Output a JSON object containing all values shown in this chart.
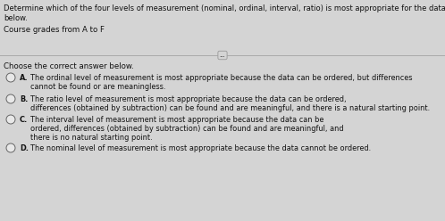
{
  "bg_color": "#d4d4d4",
  "title_line1": "Determine which of the four levels of measurement (nominal, ordinal, interval, ratio) is most appropriate for the data",
  "title_line2": "below.",
  "subtitle": "Course grades from A to F",
  "divider_label": "...",
  "prompt": "Choose the correct answer below.",
  "options": [
    {
      "letter": "A.",
      "lines": [
        "The ordinal level of measurement is most appropriate because the data can be ordered, but differences",
        "cannot be found or are meaningless."
      ]
    },
    {
      "letter": "B.",
      "lines": [
        "The ratio level of measurement is most appropriate because the data can be ordered,",
        "differences (obtained by subtraction) can be found and are meaningful, and there is a natural starting point."
      ]
    },
    {
      "letter": "C.",
      "lines": [
        "The interval level of measurement is most appropriate because the data can be",
        "ordered, differences (obtained by subtraction) can be found and are meaningful, and",
        "there is no natural starting point."
      ]
    },
    {
      "letter": "D.",
      "lines": [
        "The nominal level of measurement is most appropriate because the data cannot be ordered."
      ]
    }
  ],
  "font_size_title": 6.0,
  "font_size_subtitle": 6.2,
  "font_size_prompt": 6.2,
  "font_size_options": 5.9,
  "text_color": "#111111",
  "circle_color": "#e8e8e8",
  "circle_edge_color": "#666666"
}
